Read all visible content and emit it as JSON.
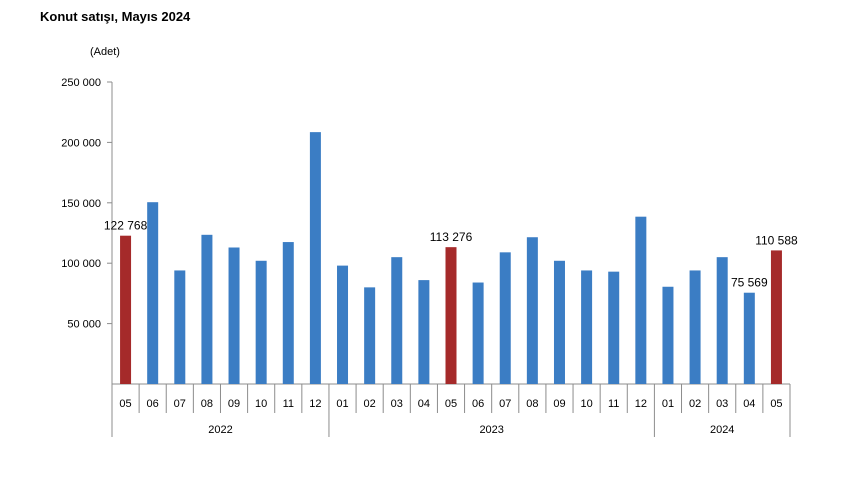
{
  "chart_data": {
    "type": "bar",
    "title": "Konut satışı, Mayıs 2024",
    "unit_label": "(Adet)",
    "ylim": [
      0,
      250000
    ],
    "yticks": [
      {
        "value": 250000,
        "label": "250 000"
      },
      {
        "value": 200000,
        "label": "200 000"
      },
      {
        "value": 150000,
        "label": "150 000"
      },
      {
        "value": 100000,
        "label": "100 000"
      },
      {
        "value": 50000,
        "label": "50 000"
      }
    ],
    "categories": [
      "05",
      "06",
      "07",
      "08",
      "09",
      "10",
      "11",
      "12",
      "01",
      "02",
      "03",
      "04",
      "05",
      "06",
      "07",
      "08",
      "09",
      "10",
      "11",
      "12",
      "01",
      "02",
      "03",
      "04",
      "05"
    ],
    "year_groups": [
      {
        "label": "2022",
        "start": 0,
        "end": 7
      },
      {
        "label": "2023",
        "start": 8,
        "end": 19
      },
      {
        "label": "2024",
        "start": 20,
        "end": 24
      }
    ],
    "values": [
      122768,
      150500,
      94000,
      123500,
      113000,
      102000,
      117500,
      208500,
      98000,
      80000,
      105000,
      86000,
      113276,
      84000,
      109000,
      121500,
      102000,
      94000,
      93000,
      138500,
      80500,
      94000,
      105000,
      75569,
      110588
    ],
    "highlight_indices": [
      0,
      12,
      24
    ],
    "data_labels": [
      {
        "index": 0,
        "text": "122 768"
      },
      {
        "index": 12,
        "text": "113 276"
      },
      {
        "index": 23,
        "text": "75 569"
      },
      {
        "index": 24,
        "text": "110 588"
      }
    ],
    "colors": {
      "bar": "#3B7DC4",
      "highlight": "#A52A2A",
      "axis": "#8c8c8c"
    },
    "grid": false
  }
}
